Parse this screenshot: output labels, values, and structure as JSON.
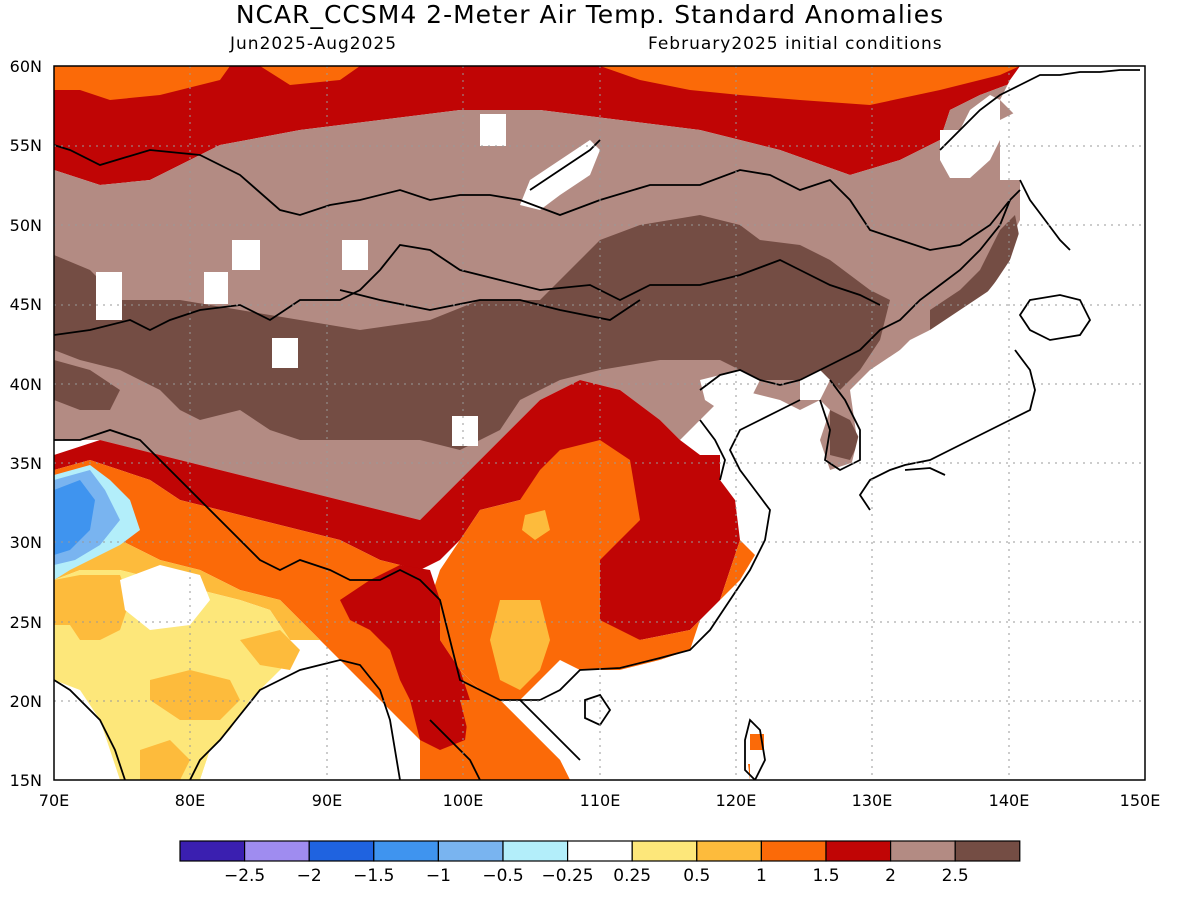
{
  "header": {
    "title": "NCAR_CCSM4 2-Meter Air Temp. Standard Anomalies",
    "period": "Jun2025-Aug2025",
    "init": "February2025 initial conditions"
  },
  "map": {
    "lat_labels": [
      "60N",
      "55N",
      "50N",
      "45N",
      "40N",
      "35N",
      "30N",
      "25N",
      "20N",
      "15N"
    ],
    "lon_labels": [
      "70E",
      "80E",
      "90E",
      "100E",
      "110E",
      "120E",
      "130E",
      "140E",
      "150E"
    ]
  },
  "legend": {
    "colors": [
      "#3a1fb0",
      "#9f8cf0",
      "#1f63e0",
      "#3f94ef",
      "#79b4f0",
      "#b3eefa",
      "#ffffff",
      "#fde77a",
      "#fdbb3c",
      "#fb6a08",
      "#c00505",
      "#b38b83",
      "#744d44"
    ],
    "labels": [
      "−2.5",
      "−2",
      "−1.5",
      "−1",
      "−0.5",
      "−0.25",
      "0.25",
      "0.5",
      "1",
      "1.5",
      "2",
      "2.5"
    ]
  },
  "colors": {
    "light_brown": "#b38b83",
    "dark_brown": "#744d44",
    "dark_red": "#c00505",
    "orange": "#fb6a08",
    "light_orange": "#fdbb3c",
    "yellow": "#fde77a",
    "blue": "#3f94ef",
    "light_blue": "#79b4f0",
    "cyan": "#b3eefa"
  }
}
